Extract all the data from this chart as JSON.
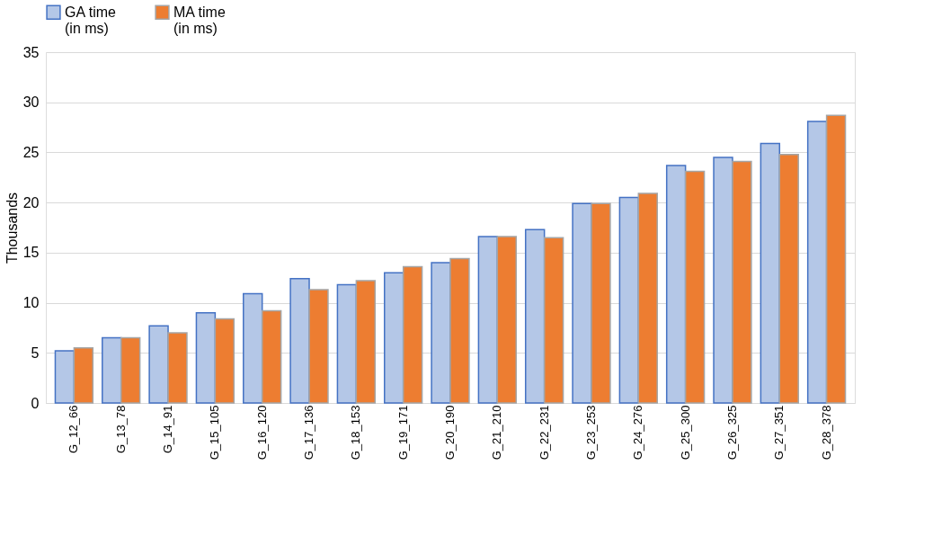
{
  "chart_data": {
    "type": "bar",
    "ylabel": "Thousands",
    "categories": [
      "G_12_66",
      "G_13_78",
      "G_14_91",
      "G_15_105",
      "G_16_120",
      "G_17_136",
      "G_18_153",
      "G_19_171",
      "G_20_190",
      "G_21_210",
      "G_22_231",
      "G_23_253",
      "G_24_276",
      "G_25_300",
      "G_26_325",
      "G_27_351",
      "G_28_378"
    ],
    "series": [
      {
        "name": "GA time\n(in ms)",
        "color": "#b4c7e7",
        "values": [
          5.2,
          6.5,
          7.7,
          9.0,
          10.9,
          12.4,
          11.8,
          13.0,
          14.0,
          16.6,
          17.3,
          19.9,
          20.5,
          23.7,
          24.5,
          25.9,
          28.1
        ]
      },
      {
        "name": "MA time\n(in ms)",
        "color": "#ed7d31",
        "values": [
          5.5,
          6.5,
          7.0,
          8.4,
          9.2,
          11.3,
          12.2,
          13.6,
          14.4,
          16.6,
          16.5,
          19.9,
          20.9,
          23.1,
          24.1,
          24.8,
          28.7
        ]
      }
    ],
    "ylim": [
      0,
      35
    ],
    "yticks": [
      0,
      5,
      10,
      15,
      20,
      25,
      30,
      35
    ],
    "grid": "y",
    "legend": "top"
  }
}
